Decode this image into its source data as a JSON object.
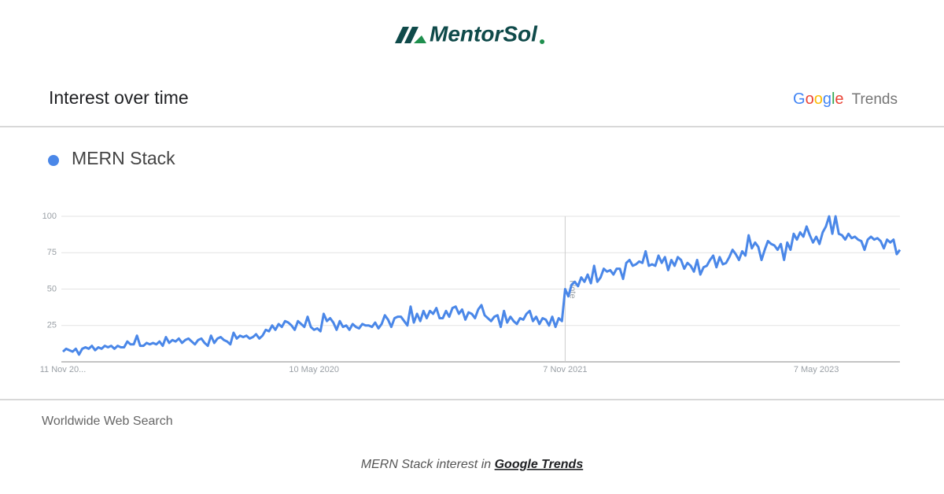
{
  "logo": "MentorSol",
  "header": {
    "title": "Interest over time",
    "brand": "Google",
    "product": "Trends"
  },
  "region": "Worldwide Web Search",
  "footer": {
    "text": "MERN Stack interest in",
    "link": "Google Trends"
  },
  "chart_data": {
    "type": "line",
    "categories": [
      "11 Nov 20...",
      null,
      null,
      null,
      null,
      null,
      null,
      null,
      null,
      null,
      null,
      null,
      null,
      null,
      null,
      null,
      null,
      null,
      null,
      null,
      null,
      null,
      null,
      null,
      null,
      null,
      null,
      null,
      null,
      null,
      null,
      null,
      null,
      null,
      null,
      null,
      null,
      null,
      null,
      null,
      null,
      null,
      null,
      null,
      null,
      null,
      null,
      null,
      null,
      null,
      null,
      null,
      null,
      null,
      null,
      null,
      null,
      null,
      null,
      null,
      null,
      null,
      null,
      null,
      null,
      null,
      null,
      null,
      null,
      null,
      null,
      null,
      null,
      null,
      null,
      null,
      null,
      null,
      "10 May 2020",
      null,
      null,
      null,
      null,
      null,
      null,
      null,
      null,
      null,
      null,
      null,
      null,
      null,
      null,
      null,
      null,
      null,
      null,
      null,
      null,
      null,
      null,
      null,
      null,
      null,
      null,
      null,
      null,
      null,
      null,
      null,
      null,
      null,
      null,
      null,
      null,
      null,
      null,
      null,
      null,
      null,
      null,
      null,
      null,
      null,
      null,
      null,
      null,
      null,
      null,
      null,
      null,
      null,
      null,
      null,
      null,
      null,
      null,
      null,
      null,
      null,
      null,
      null,
      null,
      null,
      null,
      null,
      null,
      null,
      null,
      null,
      null,
      null,
      null,
      null,
      null,
      null,
      "7 Nov 2021",
      null,
      null,
      null,
      null,
      null,
      null,
      null,
      null,
      null,
      null,
      null,
      null,
      null,
      null,
      null,
      null,
      null,
      null,
      null,
      null,
      null,
      null,
      null,
      null,
      null,
      null,
      null,
      null,
      null,
      null,
      null,
      null,
      null,
      null,
      null,
      null,
      null,
      null,
      null,
      null,
      null,
      null,
      null,
      null,
      null,
      null,
      null,
      null,
      null,
      null,
      null,
      null,
      null,
      null,
      null,
      null,
      null,
      null,
      null,
      null,
      null,
      null,
      null,
      null,
      null,
      null,
      null,
      null,
      null,
      null,
      null,
      null,
      null,
      null,
      null,
      null,
      null,
      "7 May 2023",
      null,
      null,
      null,
      null,
      null,
      null,
      null,
      null,
      null,
      null,
      null,
      null,
      null,
      null,
      null,
      null,
      null,
      null,
      null,
      null,
      null,
      null,
      null,
      null,
      null,
      null
    ],
    "series": [
      {
        "name": "MERN Stack",
        "color": "#4a87e8",
        "values": [
          7,
          9,
          8,
          7,
          9,
          5,
          9,
          10,
          9,
          11,
          8,
          10,
          9,
          11,
          10,
          11,
          9,
          11,
          10,
          10,
          14,
          12,
          12,
          18,
          11,
          11,
          13,
          12,
          13,
          12,
          14,
          11,
          17,
          13,
          15,
          14,
          16,
          13,
          15,
          16,
          14,
          12,
          15,
          16,
          13,
          11,
          18,
          13,
          16,
          17,
          15,
          14,
          12,
          20,
          16,
          18,
          17,
          18,
          16,
          17,
          19,
          16,
          18,
          22,
          21,
          25,
          22,
          26,
          24,
          28,
          27,
          25,
          22,
          28,
          26,
          24,
          31,
          24,
          22,
          23,
          21,
          33,
          28,
          30,
          27,
          22,
          28,
          24,
          25,
          22,
          26,
          24,
          23,
          26,
          25,
          25,
          24,
          27,
          23,
          26,
          32,
          29,
          24,
          30,
          31,
          31,
          28,
          25,
          38,
          27,
          33,
          28,
          35,
          30,
          35,
          33,
          37,
          30,
          30,
          35,
          31,
          37,
          38,
          33,
          36,
          29,
          34,
          33,
          30,
          36,
          39,
          32,
          30,
          28,
          31,
          32,
          24,
          35,
          27,
          31,
          28,
          26,
          30,
          29,
          33,
          35,
          28,
          31,
          26,
          30,
          29,
          25,
          31,
          24,
          30,
          28,
          50,
          45,
          53,
          55,
          52,
          58,
          55,
          60,
          54,
          66,
          55,
          58,
          64,
          62,
          63,
          60,
          64,
          64,
          57,
          68,
          70,
          66,
          67,
          69,
          68,
          76,
          66,
          67,
          66,
          73,
          68,
          72,
          63,
          70,
          66,
          72,
          70,
          64,
          68,
          66,
          62,
          70,
          60,
          65,
          66,
          70,
          73,
          65,
          72,
          67,
          68,
          72,
          77,
          74,
          70,
          76,
          73,
          87,
          78,
          82,
          79,
          70,
          77,
          83,
          81,
          80,
          77,
          81,
          70,
          82,
          77,
          88,
          84,
          89,
          86,
          93,
          87,
          82,
          86,
          81,
          89,
          93,
          100,
          88,
          100,
          88,
          87,
          84,
          88,
          85,
          86,
          84,
          83,
          77,
          84,
          86,
          84,
          85,
          83,
          78,
          84,
          82,
          84,
          74,
          77
        ]
      }
    ],
    "annotation": "Note",
    "ylim": [
      0,
      100
    ],
    "yticks": [
      25,
      50,
      75,
      100
    ],
    "grid": true
  }
}
